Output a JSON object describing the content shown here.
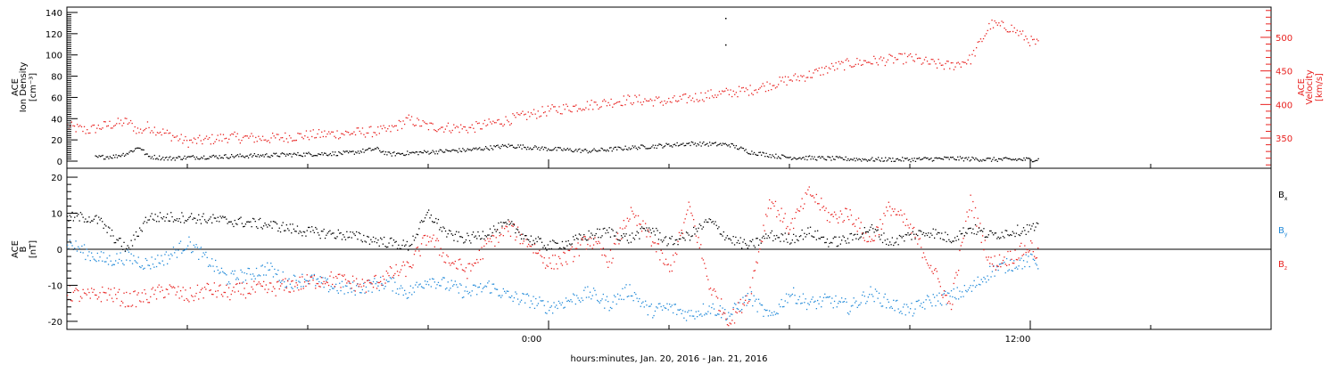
{
  "figure": {
    "xlabel": "hours:minutes, Jan. 20, 2016 - Jan. 21, 2016",
    "x_ticks": [
      "0:00",
      "12:00"
    ],
    "x_range_hours": [
      -12.0,
      18.0
    ]
  },
  "colors": {
    "black": "#000000",
    "red": "#e8201e",
    "blue": "#1e88d8"
  },
  "chart_data": [
    {
      "type": "scatter",
      "x_unit": "hours relative to Jan. 21, 2016 0:00",
      "ylabel": [
        "ACE",
        "Ion Density",
        "[cm⁻³]"
      ],
      "ylim": [
        0,
        140
      ],
      "yticks": [
        "0",
        "20",
        "40",
        "60",
        "80",
        "100",
        "120",
        "140"
      ],
      "y2label": [
        "ACE",
        "Velocity",
        "[km/s]"
      ],
      "y2lim": [
        305,
        545
      ],
      "y2ticks": [
        "350",
        "400",
        "450",
        "500"
      ],
      "series": [
        {
          "color": "#000000",
          "axis": "left",
          "x": [
            -11.3,
            -10.8,
            -10.5,
            -10.2,
            -10.0,
            -9.5,
            -9.0,
            -8.0,
            -7.0,
            -6.0,
            -5.0,
            -4.3,
            -4.0,
            -3.0,
            -2.0,
            -1.0,
            0.0,
            1.0,
            2.0,
            2.8,
            3.5,
            4.5,
            5.0,
            5.7,
            6.0,
            7.0,
            8.0,
            9.0,
            10.0,
            11.0,
            12.0,
            12.2
          ],
          "y": [
            4,
            5,
            8,
            14,
            5,
            3,
            4,
            5,
            6,
            7,
            8,
            12,
            7,
            9,
            11,
            15,
            12,
            10,
            13,
            15,
            17,
            16,
            9,
            5,
            4,
            3,
            2,
            2,
            3,
            2,
            2,
            2
          ]
        },
        {
          "color": "#e8201e",
          "axis": "right",
          "x": [
            -12.0,
            -11.5,
            -11.0,
            -10.5,
            -10.2,
            -10.0,
            -9.0,
            -8.5,
            -8.0,
            -7.0,
            -6.0,
            -5.0,
            -4.0,
            -3.5,
            -3.0,
            -2.0,
            -1.0,
            0.0,
            1.0,
            2.0,
            3.0,
            4.0,
            5.0,
            6.0,
            6.5,
            7.0,
            7.5,
            8.0,
            9.0,
            9.5,
            10.0,
            10.5,
            11.0,
            11.5,
            12.0,
            12.2
          ],
          "y": [
            368,
            362,
            370,
            375,
            360,
            368,
            345,
            348,
            352,
            350,
            355,
            358,
            362,
            378,
            368,
            365,
            378,
            392,
            400,
            408,
            405,
            415,
            422,
            438,
            445,
            455,
            462,
            465,
            470,
            462,
            458,
            468,
            520,
            515,
            495,
            490
          ]
        }
      ],
      "outliers": [
        {
          "x": 4.4,
          "y": 135
        },
        {
          "x": 4.4,
          "y": 110
        }
      ]
    },
    {
      "type": "scatter",
      "x_unit": "hours relative to Jan. 21, 2016 0:00",
      "ylabel": [
        "ACE",
        "B",
        "[nT]"
      ],
      "ylim": [
        -21,
        21
      ],
      "yticks": [
        "-20",
        "-10",
        "0",
        "10",
        "20"
      ],
      "legend_placement": "right",
      "series": [
        {
          "name": "Bx",
          "color": "#000000",
          "x": [
            -12.0,
            -11.5,
            -11.2,
            -10.8,
            -10.5,
            -10.0,
            -9.0,
            -8.0,
            -7.0,
            -6.0,
            -5.0,
            -4.0,
            -3.5,
            -3.0,
            -2.5,
            -2.0,
            -1.5,
            -1.0,
            -0.5,
            0.0,
            0.5,
            1.0,
            1.5,
            2.0,
            2.5,
            3.0,
            3.5,
            4.0,
            4.5,
            5.0,
            5.5,
            6.0,
            6.5,
            7.0,
            7.5,
            8.0,
            8.5,
            9.0,
            9.5,
            10.0,
            10.5,
            11.0,
            11.5,
            12.0,
            12.2
          ],
          "y": [
            9,
            9,
            8,
            3,
            0,
            9,
            9,
            8,
            7,
            5,
            4,
            2,
            1,
            10,
            4,
            3,
            5,
            7,
            3,
            1,
            2,
            4,
            5,
            3,
            6,
            2,
            4,
            8,
            3,
            1,
            4,
            3,
            5,
            2,
            3,
            6,
            2,
            4,
            5,
            3,
            6,
            4,
            5,
            6,
            6
          ]
        },
        {
          "name": "By",
          "color": "#1e88d8",
          "x": [
            -12.0,
            -11.5,
            -11.0,
            -10.5,
            -10.0,
            -9.5,
            -9.0,
            -8.5,
            -8.0,
            -7.5,
            -7.0,
            -6.5,
            -6.0,
            -5.5,
            -5.0,
            -4.5,
            -4.0,
            -3.5,
            -3.0,
            -2.5,
            -2.0,
            -1.5,
            -1.0,
            -0.5,
            0.0,
            0.5,
            1.0,
            1.5,
            2.0,
            2.5,
            3.0,
            3.5,
            4.0,
            4.5,
            5.0,
            5.5,
            6.0,
            6.5,
            7.0,
            7.5,
            8.0,
            8.5,
            9.0,
            9.5,
            10.0,
            10.5,
            11.0,
            11.5,
            12.0,
            12.2
          ],
          "y": [
            2,
            -1,
            -3,
            -2,
            -4,
            -2,
            2,
            -3,
            -8,
            -7,
            -5,
            -9,
            -8,
            -10,
            -11,
            -10,
            -9,
            -12,
            -8,
            -10,
            -12,
            -10,
            -13,
            -14,
            -16,
            -14,
            -12,
            -15,
            -11,
            -17,
            -16,
            -18,
            -16,
            -18,
            -13,
            -19,
            -12,
            -15,
            -14,
            -16,
            -12,
            -15,
            -17,
            -14,
            -13,
            -11,
            -6,
            -4,
            -3,
            -4
          ]
        },
        {
          "name": "Bz",
          "color": "#e8201e",
          "x": [
            -12.0,
            -11.5,
            -11.0,
            -10.5,
            -10.0,
            -9.5,
            -9.0,
            -8.5,
            -8.0,
            -7.5,
            -7.0,
            -6.5,
            -6.0,
            -5.5,
            -5.0,
            -4.5,
            -4.0,
            -3.5,
            -3.0,
            -2.5,
            -2.0,
            -1.5,
            -1.0,
            -0.5,
            0.0,
            0.5,
            1.0,
            1.5,
            2.0,
            2.5,
            3.0,
            3.5,
            4.0,
            4.5,
            5.0,
            5.5,
            6.0,
            6.5,
            7.0,
            7.5,
            8.0,
            8.5,
            9.0,
            9.5,
            10.0,
            10.5,
            11.0,
            11.5,
            12.0,
            12.2
          ],
          "y": [
            -12,
            -13,
            -12,
            -14,
            -13,
            -11,
            -13,
            -11,
            -12,
            -11,
            -11,
            -10,
            -9,
            -8,
            -9,
            -10,
            -7,
            -5,
            4,
            -3,
            -6,
            2,
            6,
            2,
            -4,
            -2,
            3,
            -3,
            10,
            4,
            -6,
            12,
            -10,
            -20,
            -12,
            14,
            6,
            16,
            9,
            10,
            2,
            12,
            6,
            -4,
            -16,
            14,
            -4,
            -2,
            1,
            -2
          ]
        }
      ]
    }
  ]
}
